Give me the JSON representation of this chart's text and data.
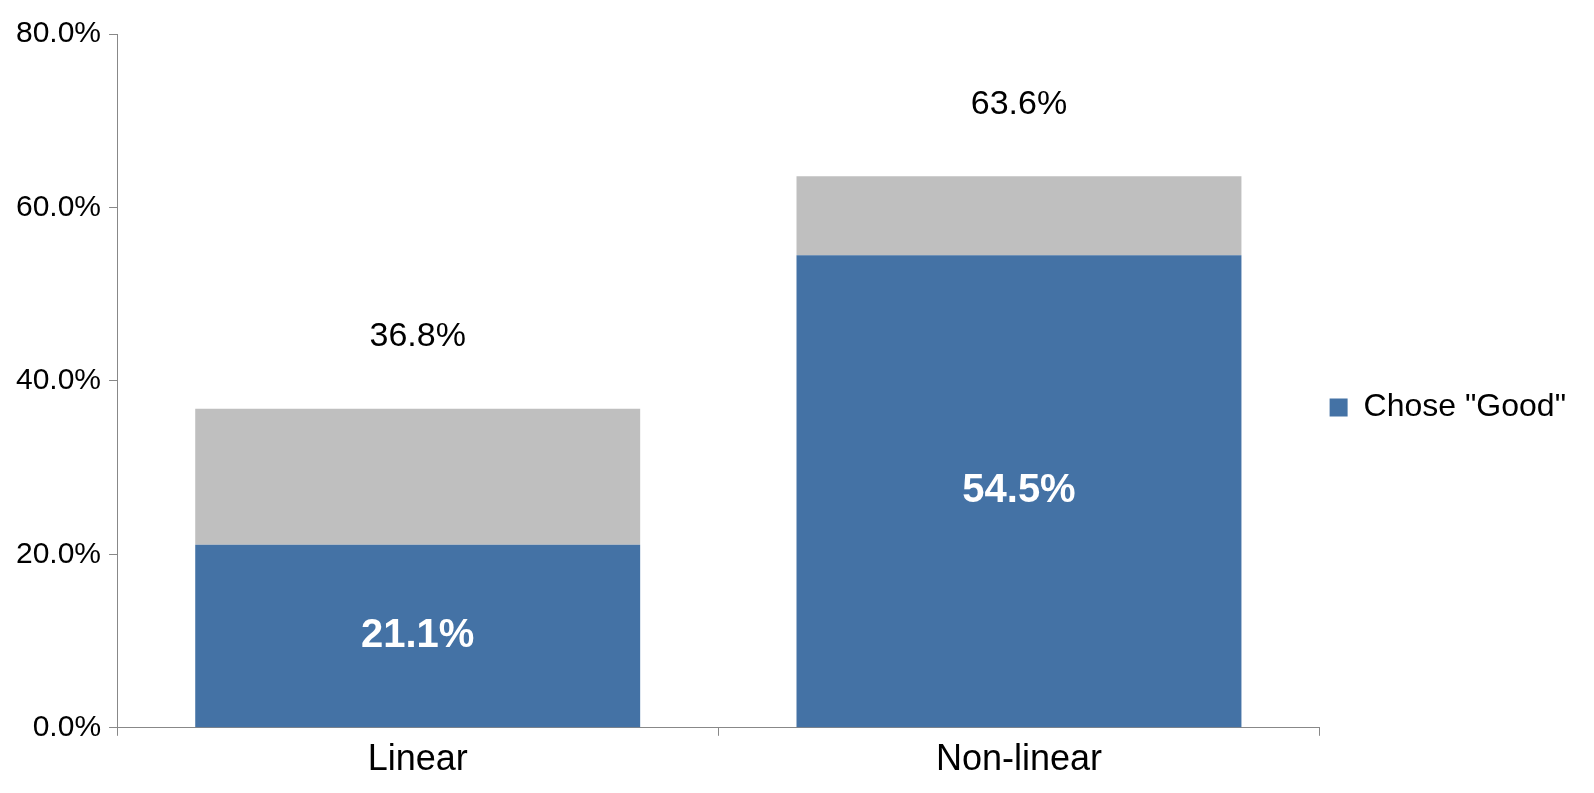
{
  "chart_data": {
    "type": "bar",
    "stacked": true,
    "categories": [
      "Linear",
      "Non-linear"
    ],
    "series": [
      {
        "name": "Chose \"Good\"",
        "color": "#4472a5",
        "values": [
          21.1,
          54.5
        ],
        "value_labels": [
          "21.1%",
          "54.5%"
        ]
      },
      {
        "color": "#bfbfbf",
        "values": [
          15.7,
          9.1
        ]
      }
    ],
    "totals": [
      "36.8%",
      "63.6%"
    ],
    "ylim": [
      0,
      80
    ],
    "yticks": [
      {
        "value": 0,
        "label": "0.0%"
      },
      {
        "value": 20,
        "label": "20.0%"
      },
      {
        "value": 40,
        "label": "40.0%"
      },
      {
        "value": 60,
        "label": "60.0%"
      },
      {
        "value": 80,
        "label": "80.0%"
      }
    ],
    "grid": false,
    "legend": "right"
  }
}
